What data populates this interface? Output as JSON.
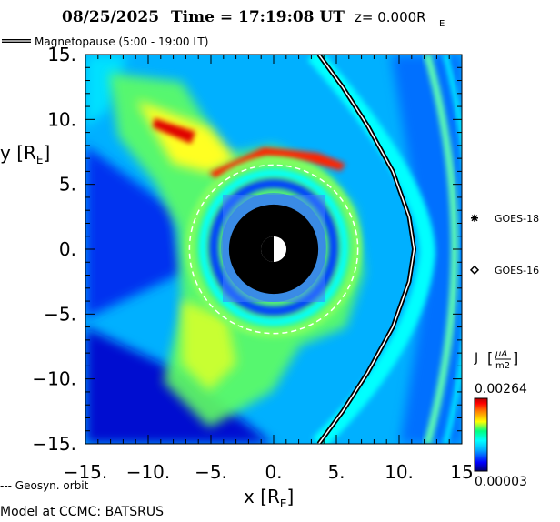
{
  "header": {
    "date": "08/25/2025",
    "time_text": "Time = 17:19:08 UT",
    "z_text": "z= 0.000R",
    "z_sub": "E"
  },
  "legend": {
    "magnetopause_label": "Magnetopause (5:00 - 19:00 LT)",
    "geosyn_label": "--- Geosyn. orbit",
    "model_label": "Model at CCMC: BATSRUS"
  },
  "satellites": [
    {
      "name": "GOES-18",
      "marker": "asterisk",
      "x": 15.8,
      "y": 2.4
    },
    {
      "name": "GOES-16",
      "marker": "diamond",
      "x": 15.8,
      "y": -1.6
    }
  ],
  "colorbar": {
    "label": "J",
    "unit_num": "µA",
    "unit_den": "m2",
    "max": "0.00264",
    "min": "0.00003",
    "colors": [
      "#00006e",
      "#0000ff",
      "#00b4ff",
      "#00ffff",
      "#00ff80",
      "#ffff00",
      "#ff8000",
      "#ff0000",
      "#b40000"
    ]
  },
  "chart_data": {
    "type": "heatmap",
    "title": "08/25/2025 Time = 17:19:08 UT z= 0.000RE",
    "xlabel": "x [RE]",
    "ylabel": "y [RE]",
    "xlim": [
      -15,
      15
    ],
    "ylim": [
      -15,
      15
    ],
    "xticks": [
      "-15.",
      "-10.",
      "-5.",
      "0.",
      "5.",
      "10.",
      "15"
    ],
    "yticks": [
      "15.",
      "10.",
      "5.",
      "0.",
      "-5.",
      "-10.",
      "-15."
    ],
    "quantity": "Current density J (µA/m²)",
    "color_range": [
      3e-05,
      0.00264
    ],
    "geosync_orbit_radius_RE": 6.6,
    "inner_boundary_radius_RE": 3.5,
    "earth_radius_RE": 1.0,
    "magnetopause": [
      [
        3.6,
        15
      ],
      [
        5.5,
        12.5
      ],
      [
        7.5,
        9.5
      ],
      [
        9.5,
        6
      ],
      [
        10.8,
        2.5
      ],
      [
        11.2,
        0
      ],
      [
        10.8,
        -2.5
      ],
      [
        9.5,
        -6
      ],
      [
        7.5,
        -9.5
      ],
      [
        5.5,
        -12.5
      ],
      [
        3.6,
        -15
      ]
    ]
  }
}
